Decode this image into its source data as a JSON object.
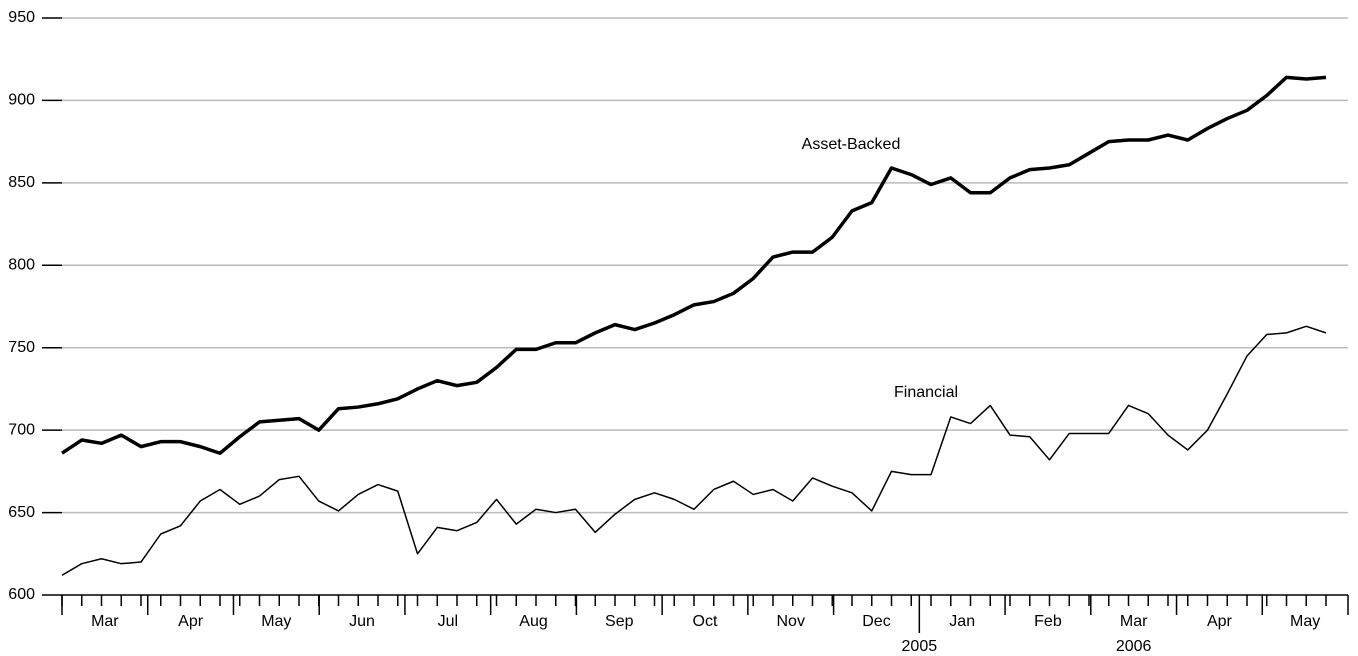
{
  "chart_data": {
    "type": "line",
    "ylim": [
      600,
      950
    ],
    "yticks": [
      600,
      650,
      700,
      750,
      800,
      850,
      900,
      950
    ],
    "grid": true,
    "months": [
      "Mar",
      "Apr",
      "May",
      "Jun",
      "Jul",
      "Aug",
      "Sep",
      "Oct",
      "Nov",
      "Dec",
      "Jan",
      "Feb",
      "Mar",
      "Apr",
      "May"
    ],
    "years": [
      "2005",
      "2006"
    ],
    "series": [
      {
        "name": "Asset-Backed",
        "color": "#000000",
        "values": [
          686,
          694,
          692,
          697,
          690,
          693,
          693,
          690,
          686,
          696,
          705,
          706,
          707,
          700,
          713,
          714,
          716,
          719,
          725,
          730,
          727,
          729,
          738,
          749,
          749,
          753,
          753,
          759,
          764,
          761,
          765,
          770,
          776,
          778,
          783,
          792,
          805,
          808,
          808,
          817,
          833,
          838,
          859,
          855,
          849,
          853,
          844,
          844,
          853,
          858,
          859,
          861,
          868,
          875,
          876,
          876,
          879,
          876,
          883,
          889,
          894,
          903,
          914,
          913,
          914
        ]
      },
      {
        "name": "Financial",
        "color": "#000000",
        "values": [
          612,
          619,
          622,
          619,
          620,
          637,
          642,
          657,
          664,
          655,
          660,
          670,
          672,
          657,
          651,
          661,
          667,
          663,
          625,
          641,
          639,
          644,
          658,
          643,
          652,
          650,
          652,
          638,
          649,
          658,
          662,
          658,
          652,
          664,
          669,
          661,
          664,
          657,
          671,
          666,
          662,
          651,
          675,
          673,
          673,
          708,
          704,
          715,
          697,
          696,
          682,
          698,
          698,
          698,
          715,
          710,
          697,
          688,
          700,
          722,
          745,
          758,
          759,
          763,
          759
        ]
      }
    ]
  }
}
